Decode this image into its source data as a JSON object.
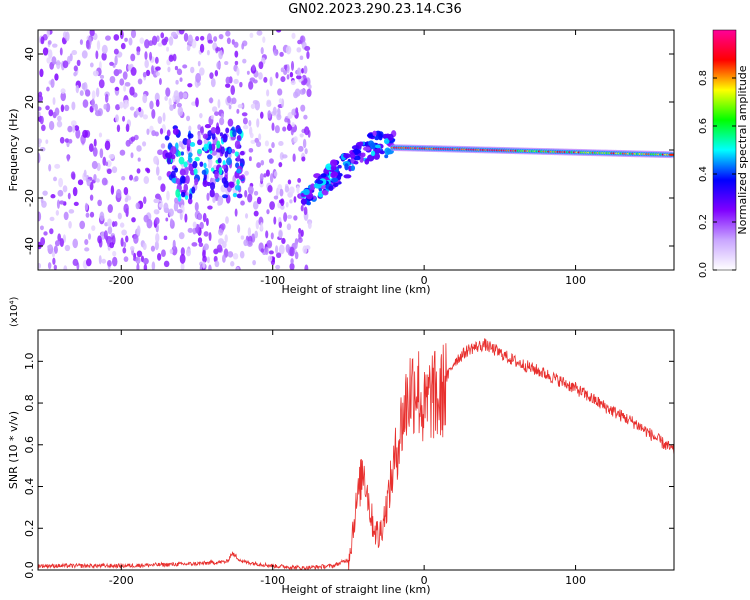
{
  "figure": {
    "title": "GN02.2023.290.23.14.C36"
  },
  "chart_data": [
    {
      "type": "heatmap",
      "xlabel": "Height of straight line (km)",
      "ylabel": "Frequency (Hz)",
      "xlim": [
        -255,
        165
      ],
      "ylim": [
        -50,
        50
      ],
      "x_ticks": [
        -200,
        -100,
        0,
        100
      ],
      "x_tick_labels": [
        "-200",
        "-100",
        "0",
        "100"
      ],
      "y_ticks": [
        -40,
        -20,
        0,
        20,
        40
      ],
      "y_tick_labels": [
        "-40",
        "-20",
        "0",
        "20",
        "40"
      ],
      "colorbar": {
        "label": "Normalized spectral amplitude",
        "range": [
          0.0,
          1.0
        ],
        "ticks": [
          0.0,
          0.2,
          0.4,
          0.6,
          0.8
        ],
        "tick_labels": [
          "0.0",
          "0.2",
          "0.4",
          "0.6",
          "0.8"
        ],
        "colormap": [
          "#ffffff",
          "#c9a6ff",
          "#7f00ff",
          "#0000ff",
          "#00ffff",
          "#00ff00",
          "#ffff00",
          "#ff0000",
          "#ff0099"
        ]
      },
      "regions": [
        {
          "x_range": [
            -255,
            -75
          ],
          "description": "broadband scattered noise",
          "amplitude": [
            0.05,
            0.25
          ]
        },
        {
          "x_range": [
            -80,
            -20
          ],
          "freq_start": -20,
          "freq_end": 2,
          "amplitude": [
            0.2,
            0.5
          ]
        },
        {
          "x_range": [
            -20,
            165
          ],
          "freq": [
            1,
            -2
          ],
          "amplitude": [
            0.5,
            1.0
          ]
        }
      ],
      "grid": false
    },
    {
      "type": "line",
      "xlabel": "Height of straight line (km)",
      "ylabel": "SNR (10 * v/v)",
      "scale_label": "(x10⁴)",
      "xlim": [
        -255,
        165
      ],
      "ylim": [
        0,
        1.15
      ],
      "x_ticks": [
        -200,
        -100,
        0,
        100
      ],
      "x_tick_labels": [
        "-200",
        "-100",
        "0",
        "100"
      ],
      "y_ticks": [
        0.0,
        0.2,
        0.4,
        0.6,
        0.8,
        1.0
      ],
      "y_tick_labels": [
        "0.0",
        "0.2",
        "0.4",
        "0.6",
        "0.8",
        "1.0"
      ],
      "color": "#e8302e",
      "x": [
        -255,
        -200,
        -150,
        -130,
        -127,
        -120,
        -100,
        -80,
        -60,
        -50,
        -45,
        -40,
        -35,
        -30,
        -25,
        -20,
        -15,
        -10,
        -5,
        0,
        5,
        10,
        15,
        20,
        30,
        40,
        50,
        60,
        80,
        100,
        120,
        140,
        165
      ],
      "y": [
        0.02,
        0.02,
        0.03,
        0.04,
        0.08,
        0.04,
        0.02,
        0.01,
        0.02,
        0.05,
        0.3,
        0.5,
        0.25,
        0.15,
        0.3,
        0.5,
        0.7,
        0.85,
        0.9,
        0.75,
        0.85,
        0.8,
        0.92,
        1.0,
        1.06,
        1.08,
        1.04,
        1.0,
        0.94,
        0.87,
        0.78,
        0.7,
        0.57
      ],
      "grid": false
    }
  ]
}
